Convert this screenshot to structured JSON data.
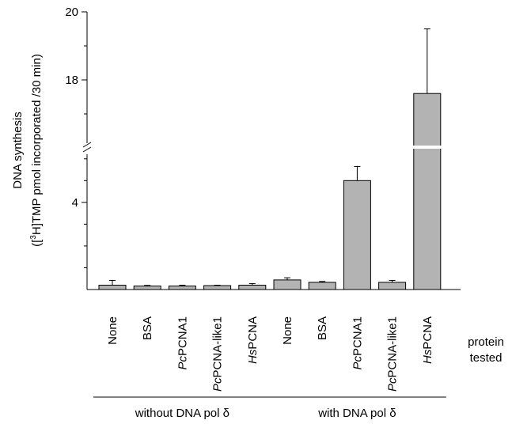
{
  "chart_data": {
    "type": "bar",
    "ylabel_line1": "DNA synthesis",
    "ylabel_line2_parts": [
      "([",
      "3",
      "H]TMP pmol incorporated /30 min)"
    ],
    "categories": [
      {
        "label": "None",
        "italic_prefix": "",
        "rest": "None"
      },
      {
        "label": "BSA",
        "italic_prefix": "",
        "rest": "BSA"
      },
      {
        "label": "PcPCNA1",
        "italic_prefix": "Pc",
        "rest": "PCNA1"
      },
      {
        "label": "PcPCNA-like1",
        "italic_prefix": "Pc",
        "rest": "PCNA-like1"
      },
      {
        "label": "HsPCNA",
        "italic_prefix": "Hs",
        "rest": "PCNA"
      },
      {
        "label": "None",
        "italic_prefix": "",
        "rest": "None"
      },
      {
        "label": "BSA",
        "italic_prefix": "",
        "rest": "BSA"
      },
      {
        "label": "PcPCNA1",
        "italic_prefix": "Pc",
        "rest": "PCNA1"
      },
      {
        "label": "PcPCNA-like1",
        "italic_prefix": "Pc",
        "rest": "PCNA-like1"
      },
      {
        "label": "HsPCNA",
        "italic_prefix": "Hs",
        "rest": "PCNA"
      }
    ],
    "values": [
      0.2,
      0.16,
      0.16,
      0.18,
      0.2,
      0.44,
      0.33,
      5.0,
      0.33,
      17.6
    ],
    "errors": [
      0.22,
      0.03,
      0.04,
      0.02,
      0.07,
      0.1,
      0.04,
      0.65,
      0.09,
      1.9
    ],
    "groups": [
      {
        "label": "without DNA pol δ",
        "from": 0,
        "to": 4
      },
      {
        "label": "with DNA pol δ",
        "from": 5,
        "to": 9
      }
    ],
    "protein_label": [
      "protein",
      "tested"
    ],
    "yticks_lower": [
      4
    ],
    "yticks_upper": [
      18,
      20
    ],
    "axis_break": {
      "lower_range": [
        0,
        6.5
      ],
      "upper_range": [
        16,
        20
      ]
    },
    "bar_color": "#b3b3b3"
  }
}
